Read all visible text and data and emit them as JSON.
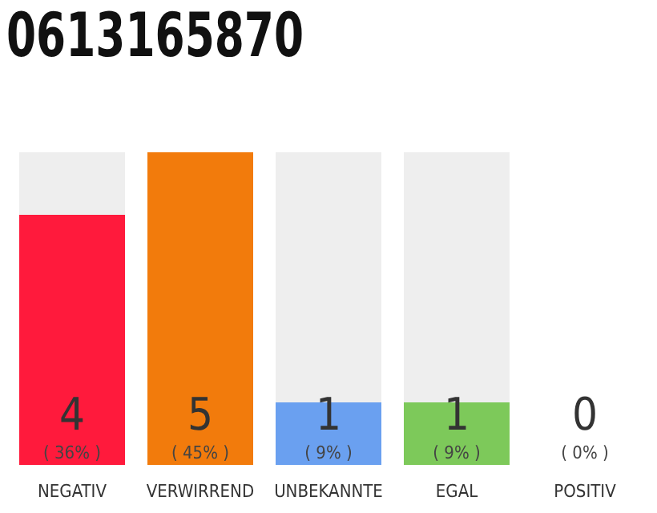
{
  "chart_data": {
    "type": "bar",
    "title": "0613165870",
    "categories": [
      "NEGATIV",
      "VERWIRREND",
      "UNBEKANNTE",
      "EGAL",
      "POSITIV"
    ],
    "values": [
      36,
      45,
      9,
      9,
      0
    ],
    "colors": [
      "#ff1a3c",
      "#f27b0c",
      "#6aa0f0",
      "#7dc95a",
      "#cccccc"
    ],
    "value_labels": [
      "( 36% )",
      "( 45% )",
      "( 9% )",
      "( 9% )",
      "( 0% )"
    ],
    "annotations": [
      "4",
      "5",
      "1",
      "1",
      "0"
    ]
  }
}
